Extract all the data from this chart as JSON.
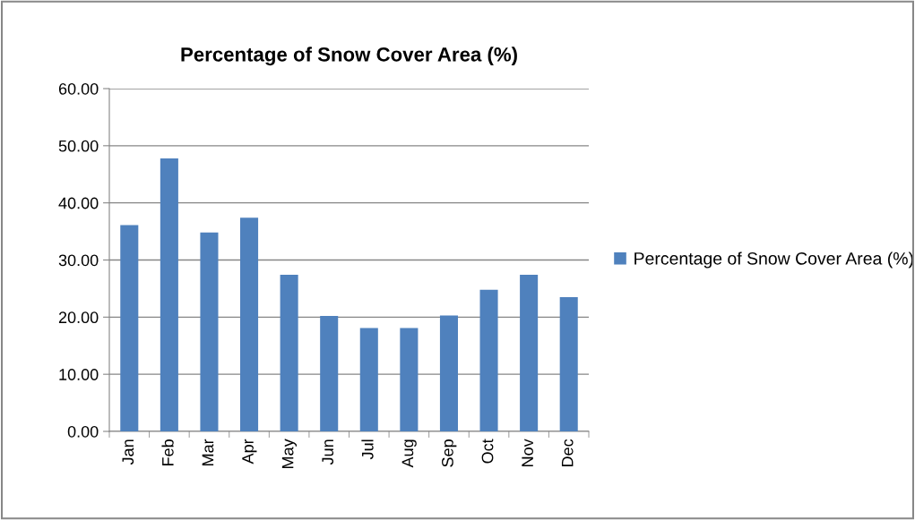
{
  "chart_data": {
    "type": "bar",
    "title": "Percentage of Snow Cover Area (%)",
    "categories": [
      "Jan",
      "Feb",
      "Mar",
      "Apr",
      "May",
      "Jun",
      "Jul",
      "Aug",
      "Sep",
      "Oct",
      "Nov",
      "Dec"
    ],
    "series": [
      {
        "name": "Percentage of Snow Cover Area (%)",
        "color": "#4f81bd",
        "values": [
          36.1,
          47.8,
          34.8,
          37.4,
          27.4,
          20.2,
          18.1,
          18.1,
          20.3,
          24.8,
          27.4,
          23.5
        ]
      }
    ],
    "ylim": [
      0,
      60
    ],
    "yticks": [
      {
        "value": 0,
        "label": "0.00"
      },
      {
        "value": 10,
        "label": "10.00"
      },
      {
        "value": 20,
        "label": "20.00"
      },
      {
        "value": 30,
        "label": "30.00"
      },
      {
        "value": 40,
        "label": "40.00"
      },
      {
        "value": 50,
        "label": "50.00"
      },
      {
        "value": 60,
        "label": "60.00"
      }
    ],
    "grid": "y",
    "legend": "right"
  }
}
